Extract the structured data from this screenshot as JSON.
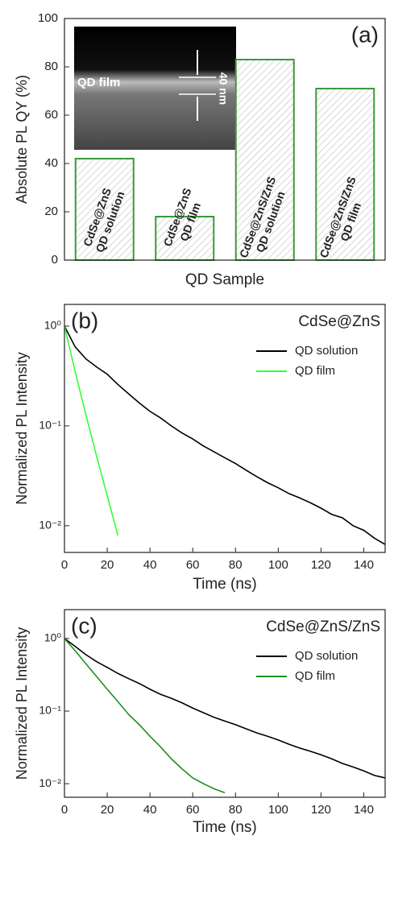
{
  "chart_data": [
    {
      "type": "bar",
      "annotation": "(a)",
      "y_label": "Absolute PL QY (%)",
      "x_label": "QD Sample",
      "categories": [
        [
          "CdSe@ZnS",
          "QD solution"
        ],
        [
          "CdSe@ZnS",
          "QD film"
        ],
        [
          "CdSe@ZnS/ZnS",
          "QD solution"
        ],
        [
          "CdSe@ZnS/ZnS",
          "QD film"
        ]
      ],
      "values": [
        42,
        18,
        83,
        71
      ],
      "color": "#3a9a3a",
      "ylim": [
        0,
        100
      ],
      "yticks": [
        0,
        20,
        40,
        60,
        80,
        100
      ],
      "inset_labels": [
        "QD film",
        "40 nm"
      ]
    },
    {
      "type": "line",
      "annotation": "(b)",
      "title": "CdSe@ZnS",
      "y_label": "Normalized PL Intensity",
      "x_label": "Time (ns)",
      "log_y": true,
      "x": [
        0,
        5,
        10,
        15,
        20,
        25,
        30,
        35,
        40,
        45,
        50,
        55,
        60,
        65,
        70,
        75,
        80,
        85,
        90,
        95,
        100,
        105,
        110,
        115,
        120,
        125,
        130,
        135,
        140,
        145,
        150
      ],
      "series": [
        {
          "name": "QD solution",
          "color": "#000000",
          "values": [
            1,
            0.62,
            0.47,
            0.39,
            0.33,
            0.26,
            0.21,
            0.17,
            0.14,
            0.12,
            0.1,
            0.085,
            0.074,
            0.063,
            0.055,
            0.048,
            0.042,
            0.036,
            0.031,
            0.027,
            0.024,
            0.021,
            0.019,
            0.017,
            0.015,
            0.013,
            0.012,
            0.01,
            0.009,
            0.0075,
            0.0065
          ]
        },
        {
          "name": "QD film",
          "color": "#33ff33",
          "values": [
            1,
            0.35,
            0.13,
            0.05,
            0.02,
            0.008,
            null,
            null,
            null,
            null,
            null,
            null,
            null,
            null,
            null,
            null,
            null,
            null,
            null,
            null,
            null,
            null,
            null,
            null,
            null,
            null,
            null,
            null,
            null,
            null,
            null
          ]
        }
      ],
      "xlim": [
        0,
        150
      ],
      "xticks": [
        0,
        20,
        40,
        60,
        80,
        100,
        120,
        140
      ],
      "ylim": [
        0.0054,
        1.65
      ],
      "yticks": [
        {
          "value": 0.01,
          "label": "10⁻²"
        },
        {
          "value": 0.1,
          "label": "10⁻¹"
        },
        {
          "value": 1,
          "label": "10⁰"
        }
      ]
    },
    {
      "type": "line",
      "annotation": "(c)",
      "title": "CdSe@ZnS/ZnS",
      "y_label": "Normalized PL Intensity",
      "x_label": "Time (ns)",
      "log_y": true,
      "x": [
        0,
        5,
        10,
        15,
        20,
        25,
        30,
        35,
        40,
        45,
        50,
        55,
        60,
        65,
        70,
        75,
        80,
        85,
        90,
        95,
        100,
        105,
        110,
        115,
        120,
        125,
        130,
        135,
        140,
        145,
        150
      ],
      "series": [
        {
          "name": "QD solution",
          "color": "#000000",
          "values": [
            1,
            0.78,
            0.6,
            0.48,
            0.4,
            0.33,
            0.28,
            0.24,
            0.2,
            0.17,
            0.15,
            0.13,
            0.11,
            0.095,
            0.082,
            0.073,
            0.065,
            0.057,
            0.05,
            0.045,
            0.04,
            0.035,
            0.031,
            0.028,
            0.025,
            0.022,
            0.019,
            0.017,
            0.015,
            0.013,
            0.012
          ]
        },
        {
          "name": "QD film",
          "color": "#1f8f1f",
          "values": [
            1,
            0.68,
            0.45,
            0.3,
            0.2,
            0.135,
            0.09,
            0.065,
            0.045,
            0.032,
            0.022,
            0.016,
            0.012,
            0.01,
            0.0085,
            0.0075,
            null,
            null,
            null,
            null,
            null,
            null,
            null,
            null,
            null,
            null,
            null,
            null,
            null,
            null,
            null
          ]
        }
      ],
      "xlim": [
        0,
        150
      ],
      "xticks": [
        0,
        20,
        40,
        60,
        80,
        100,
        120,
        140
      ],
      "ylim": [
        0.0065,
        2.5
      ],
      "yticks": [
        {
          "value": 0.01,
          "label": "10⁻²"
        },
        {
          "value": 0.1,
          "label": "10⁻¹"
        },
        {
          "value": 1,
          "label": "10⁰"
        }
      ]
    }
  ]
}
